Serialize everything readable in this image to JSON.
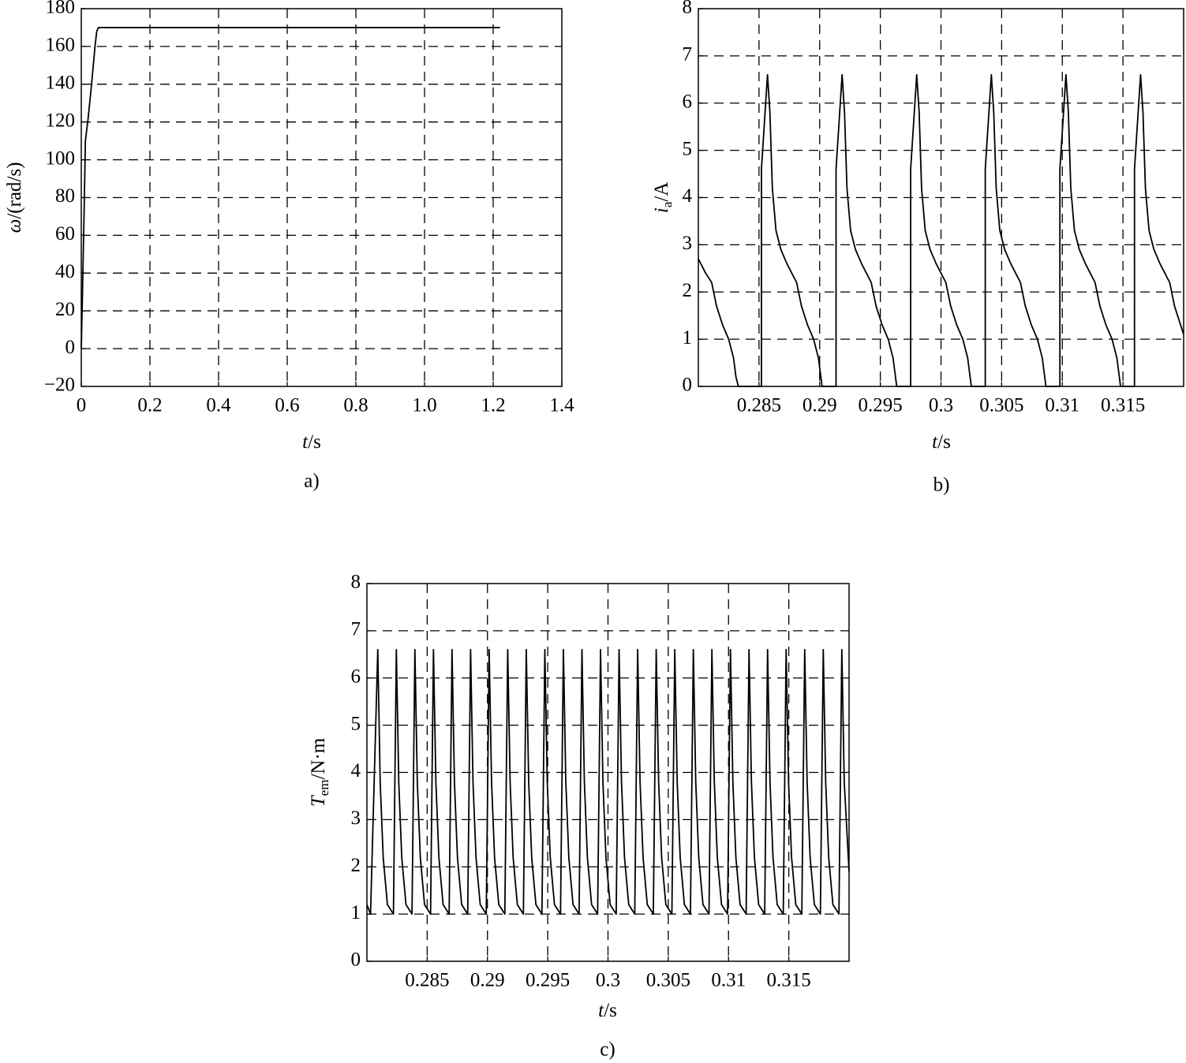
{
  "chart_data": [
    {
      "type": "line",
      "caption": "a)",
      "xlabel": {
        "symbol": "t",
        "unit": "/s"
      },
      "ylabel": {
        "symbol": "ω",
        "unit": "/(rad/s)"
      },
      "x": [
        0,
        0.003,
        0.008,
        0.012,
        0.02,
        0.03,
        0.04,
        0.045,
        0.05,
        1.22
      ],
      "values": [
        0,
        25,
        70,
        110,
        122,
        140,
        160,
        168,
        170,
        170
      ],
      "color": "#000000",
      "xlim": [
        0,
        1.4
      ],
      "ylim": [
        -20,
        180
      ],
      "xticks": [
        0,
        0.2,
        0.4,
        0.6,
        0.8,
        {
          "value": 1,
          "label": "1.0"
        },
        1.2,
        1.4
      ],
      "yticks": [
        {
          "value": -20,
          "label": "−20"
        },
        0,
        20,
        40,
        60,
        80,
        100,
        120,
        140,
        160,
        180
      ],
      "grid": true
    },
    {
      "type": "line",
      "caption": "b)",
      "xlabel": {
        "symbol": "t",
        "unit": "/s"
      },
      "ylabel": {
        "symbol": "i",
        "subscript": "a",
        "unit": "/A"
      },
      "x": [
        0.28,
        0.2806,
        0.2811,
        0.2815,
        0.282,
        0.2825,
        0.2829,
        0.2831,
        0.2833,
        0.2852,
        0.2852,
        0.2855,
        0.2857,
        0.2859,
        0.2861,
        0.2864,
        0.2868,
        0.2873,
        0.2877,
        0.2881,
        0.2885,
        0.289,
        0.2895,
        0.2899,
        0.2901,
        0.2902,
        0.29135,
        0.29135,
        0.29165,
        0.29185,
        0.29205,
        0.29225,
        0.29255,
        0.29295,
        0.29345,
        0.29385,
        0.29425,
        0.29465,
        0.29515,
        0.29565,
        0.29605,
        0.29625,
        0.29635,
        0.2975,
        0.2975,
        0.2978,
        0.298,
        0.2982,
        0.2984,
        0.2987,
        0.2991,
        0.2996,
        0.3,
        0.3004,
        0.3008,
        0.3013,
        0.3018,
        0.3022,
        0.3024,
        0.3025,
        0.30365,
        0.30365,
        0.30395,
        0.30415,
        0.30435,
        0.30455,
        0.30485,
        0.30525,
        0.30575,
        0.30615,
        0.30655,
        0.30695,
        0.30745,
        0.30795,
        0.30835,
        0.30855,
        0.30865,
        0.3098,
        0.3098,
        0.3101,
        0.3103,
        0.3105,
        0.3107,
        0.311,
        0.3114,
        0.3119,
        0.3123,
        0.3127,
        0.3131,
        0.3136,
        0.3141,
        0.3145,
        0.3147,
        0.3148,
        0.31595,
        0.31595,
        0.31625,
        0.31645,
        0.31665,
        0.31685,
        0.31715,
        0.31755,
        0.31805,
        0.31845,
        0.31885,
        0.31925,
        0.31975,
        0.32
      ],
      "values": [
        2.7,
        2.4,
        2.2,
        1.7,
        1.3,
        1.0,
        0.6,
        0.2,
        0,
        0,
        4.6,
        5.8,
        6.6,
        5.8,
        4.2,
        3.3,
        2.9,
        2.6,
        2.4,
        2.2,
        1.7,
        1.3,
        1.0,
        0.6,
        0.2,
        0,
        0,
        4.6,
        5.8,
        6.6,
        5.8,
        4.2,
        3.3,
        2.9,
        2.6,
        2.4,
        2.2,
        1.7,
        1.3,
        1.0,
        0.6,
        0.2,
        0,
        0,
        4.6,
        5.8,
        6.6,
        5.8,
        4.2,
        3.3,
        2.9,
        2.6,
        2.4,
        2.2,
        1.7,
        1.3,
        1.0,
        0.6,
        0.2,
        0,
        0,
        4.6,
        5.8,
        6.6,
        5.8,
        4.2,
        3.3,
        2.9,
        2.6,
        2.4,
        2.2,
        1.7,
        1.3,
        1.0,
        0.6,
        0.2,
        0,
        0,
        4.6,
        5.8,
        6.6,
        5.8,
        4.2,
        3.3,
        2.9,
        2.6,
        2.4,
        2.2,
        1.7,
        1.3,
        1.0,
        0.6,
        0.2,
        0,
        0,
        4.6,
        5.8,
        6.6,
        5.8,
        4.2,
        3.3,
        2.9,
        2.6,
        2.4,
        2.2,
        1.7,
        1.3,
        1.1
      ],
      "color": "#000000",
      "xlim": [
        0.28,
        0.32
      ],
      "ylim": [
        0,
        8
      ],
      "xticks": [
        0.285,
        0.29,
        0.295,
        0.3,
        0.305,
        0.31,
        0.315
      ],
      "yticks": [
        0,
        1,
        2,
        3,
        4,
        5,
        6,
        7,
        8
      ],
      "grid": true
    },
    {
      "type": "line",
      "caption": "c)",
      "xlabel": {
        "symbol": "t",
        "unit": "/s"
      },
      "ylabel": {
        "symbol": "T",
        "subscript": "em",
        "unit": "/N·m"
      },
      "x": [
        0.28,
        0.2803,
        0.2809,
        0.2811,
        0.28135,
        0.2817,
        0.2822,
        0.28244,
        0.28264,
        0.28289,
        0.28324,
        0.28374,
        0.28398,
        0.28418,
        0.28443,
        0.28478,
        0.28528,
        0.28552,
        0.28572,
        0.28597,
        0.28632,
        0.28682,
        0.28706,
        0.28726,
        0.28751,
        0.28786,
        0.28836,
        0.2886,
        0.2888,
        0.28905,
        0.2894,
        0.2899,
        0.29014,
        0.29034,
        0.29059,
        0.29094,
        0.29144,
        0.29168,
        0.29188,
        0.29213,
        0.29248,
        0.29298,
        0.29322,
        0.29342,
        0.29367,
        0.29402,
        0.29452,
        0.29476,
        0.29496,
        0.29521,
        0.29556,
        0.29606,
        0.2963,
        0.2965,
        0.29675,
        0.2971,
        0.2976,
        0.29784,
        0.29804,
        0.29829,
        0.29864,
        0.29914,
        0.29938,
        0.29958,
        0.29983,
        0.30018,
        0.30068,
        0.30092,
        0.30112,
        0.30137,
        0.30172,
        0.30222,
        0.30246,
        0.30266,
        0.30291,
        0.30326,
        0.30376,
        0.304,
        0.3042,
        0.30445,
        0.3048,
        0.3053,
        0.30554,
        0.30574,
        0.30599,
        0.30634,
        0.30684,
        0.30708,
        0.30728,
        0.30753,
        0.30788,
        0.30838,
        0.30862,
        0.30882,
        0.30907,
        0.30942,
        0.30992,
        0.31016,
        0.31036,
        0.31061,
        0.31096,
        0.31146,
        0.3117,
        0.3119,
        0.31215,
        0.3125,
        0.313,
        0.31324,
        0.31344,
        0.31369,
        0.31404,
        0.31454,
        0.31478,
        0.31498,
        0.31523,
        0.31558,
        0.31608,
        0.31632,
        0.31652,
        0.31677,
        0.31712,
        0.31762,
        0.31786,
        0.31806,
        0.31831,
        0.31866,
        0.31916,
        0.3194,
        0.3196,
        0.32
      ],
      "values": [
        1.2,
        1.0,
        6.6,
        3.8,
        2.2,
        1.2,
        1.0,
        6.6,
        3.8,
        2.2,
        1.2,
        1.0,
        6.6,
        3.8,
        2.2,
        1.2,
        1.0,
        6.6,
        3.8,
        2.2,
        1.2,
        1.0,
        6.6,
        3.8,
        2.2,
        1.2,
        1.0,
        6.6,
        3.8,
        2.2,
        1.2,
        1.0,
        6.6,
        3.8,
        2.2,
        1.2,
        1.0,
        6.6,
        3.8,
        2.2,
        1.2,
        1.0,
        6.6,
        3.8,
        2.2,
        1.2,
        1.0,
        6.6,
        3.8,
        2.2,
        1.2,
        1.0,
        6.6,
        3.8,
        2.2,
        1.2,
        1.0,
        6.6,
        3.8,
        2.2,
        1.2,
        1.0,
        6.6,
        3.8,
        2.2,
        1.2,
        1.0,
        6.6,
        3.8,
        2.2,
        1.2,
        1.0,
        6.6,
        3.8,
        2.2,
        1.2,
        1.0,
        6.6,
        3.8,
        2.2,
        1.2,
        1.0,
        6.6,
        3.8,
        2.2,
        1.2,
        1.0,
        6.6,
        3.8,
        2.2,
        1.2,
        1.0,
        6.6,
        3.8,
        2.2,
        1.2,
        1.0,
        6.6,
        3.8,
        2.2,
        1.2,
        1.0,
        6.6,
        3.8,
        2.2,
        1.2,
        1.0,
        6.6,
        3.8,
        2.2,
        1.2,
        1.0,
        6.6,
        3.8,
        2.2,
        1.2,
        1.0,
        6.6,
        3.8,
        2.2,
        1.2,
        1.0,
        6.6,
        3.8,
        2.2,
        1.2,
        1.0,
        6.6,
        3.8,
        1.9
      ],
      "color": "#000000",
      "xlim": [
        0.28,
        0.32
      ],
      "ylim": [
        0,
        8
      ],
      "xticks": [
        0.285,
        0.29,
        0.295,
        0.3,
        0.305,
        0.31,
        0.315
      ],
      "yticks": [
        0,
        1,
        2,
        3,
        4,
        5,
        6,
        7,
        8
      ],
      "grid": true
    }
  ]
}
